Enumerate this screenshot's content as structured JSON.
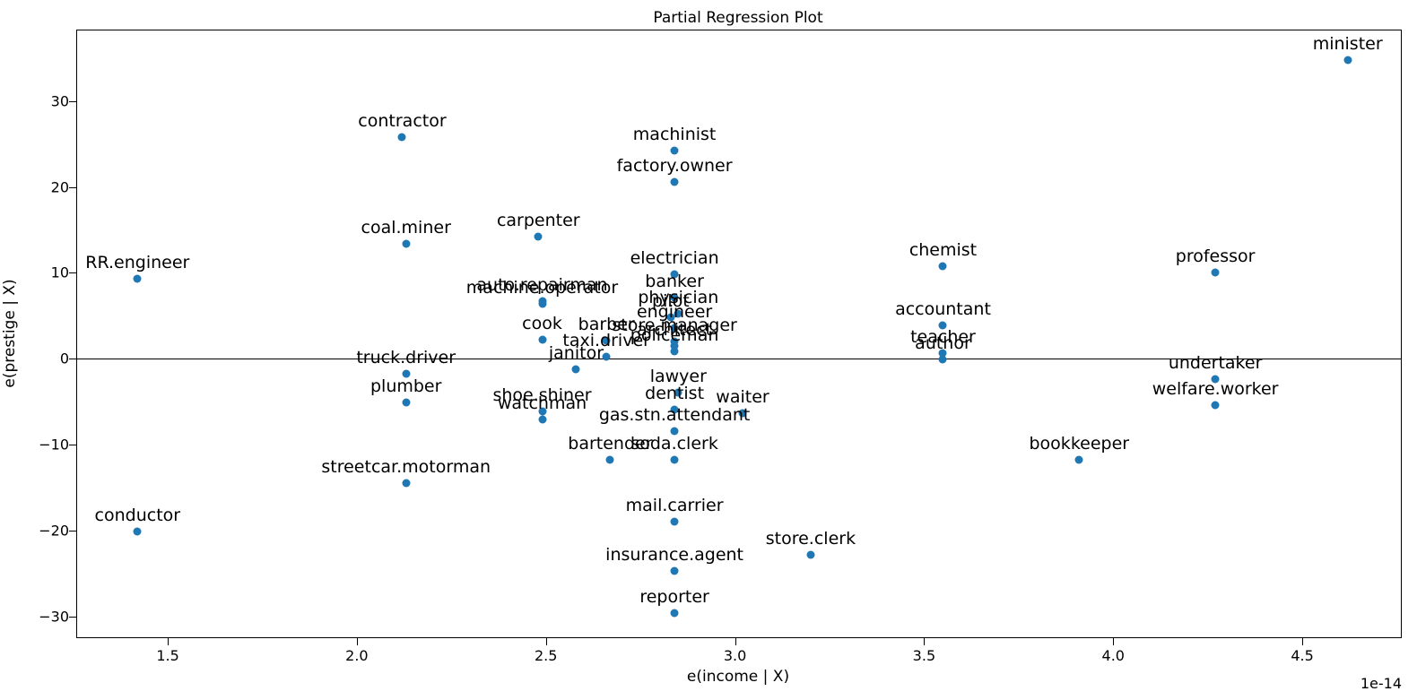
{
  "chart_data": {
    "type": "scatter",
    "title": "Partial Regression Plot",
    "xlabel": "e(income | X)",
    "ylabel": "e(prestige | X)",
    "x_offset_text": "1e-14",
    "xlim": [
      1.258,
      4.763
    ],
    "ylim": [
      -32.5,
      38.3
    ],
    "xticks": [
      1.5,
      2.0,
      2.5,
      3.0,
      3.5,
      4.0,
      4.5
    ],
    "xtick_labels": [
      "1.5",
      "2.0",
      "2.5",
      "3.0",
      "3.5",
      "4.0",
      "4.5"
    ],
    "yticks": [
      30,
      20,
      10,
      0,
      -10,
      -20,
      -30
    ],
    "ytick_labels": [
      "30",
      "20",
      "10",
      "0",
      "−10",
      "−20",
      "−30"
    ],
    "grid": false,
    "legend": false,
    "zero_line_y": 0,
    "point_color": "#1f77b4",
    "points": [
      {
        "label": "minister",
        "x": 4.62,
        "y": 34.8
      },
      {
        "label": "contractor",
        "x": 2.12,
        "y": 25.8
      },
      {
        "label": "machinist",
        "x": 2.84,
        "y": 24.2
      },
      {
        "label": "factory.owner",
        "x": 2.84,
        "y": 20.6
      },
      {
        "label": "carpenter",
        "x": 2.48,
        "y": 14.2
      },
      {
        "label": "coal.miner",
        "x": 2.13,
        "y": 13.4
      },
      {
        "label": "chemist",
        "x": 3.55,
        "y": 10.8
      },
      {
        "label": "professor",
        "x": 4.27,
        "y": 10.0
      },
      {
        "label": "electrician",
        "x": 2.84,
        "y": 9.8
      },
      {
        "label": "RR.engineer",
        "x": 1.42,
        "y": 9.3
      },
      {
        "label": "banker",
        "x": 2.84,
        "y": 7.1
      },
      {
        "label": "auto.repairman",
        "x": 2.49,
        "y": 6.7
      },
      {
        "label": "machine.operator",
        "x": 2.49,
        "y": 6.4
      },
      {
        "label": "physician",
        "x": 2.85,
        "y": 5.2
      },
      {
        "label": "pilot",
        "x": 2.83,
        "y": 4.8
      },
      {
        "label": "accountant",
        "x": 3.55,
        "y": 3.9
      },
      {
        "label": "engineer",
        "x": 2.84,
        "y": 3.6
      },
      {
        "label": "cook",
        "x": 2.49,
        "y": 2.2
      },
      {
        "label": "barber",
        "x": 2.66,
        "y": 2.1
      },
      {
        "label": "store.manager",
        "x": 2.84,
        "y": 2.0
      },
      {
        "label": "architect",
        "x": 2.84,
        "y": 1.5
      },
      {
        "label": "policeman",
        "x": 2.84,
        "y": 0.9
      },
      {
        "label": "teacher",
        "x": 3.55,
        "y": 0.7
      },
      {
        "label": "taxi.driver",
        "x": 2.66,
        "y": 0.2
      },
      {
        "label": "author",
        "x": 3.55,
        "y": -0.1
      },
      {
        "label": "janitor",
        "x": 2.58,
        "y": -1.2
      },
      {
        "label": "truck.driver",
        "x": 2.13,
        "y": -1.7
      },
      {
        "label": "undertaker",
        "x": 4.27,
        "y": -2.4
      },
      {
        "label": "lawyer",
        "x": 2.85,
        "y": -3.9
      },
      {
        "label": "plumber",
        "x": 2.13,
        "y": -5.1
      },
      {
        "label": "welfare.worker",
        "x": 4.27,
        "y": -5.4
      },
      {
        "label": "dentist",
        "x": 2.84,
        "y": -5.9
      },
      {
        "label": "shoe.shiner",
        "x": 2.49,
        "y": -6.1
      },
      {
        "label": "waiter",
        "x": 3.02,
        "y": -6.3
      },
      {
        "label": "watchman",
        "x": 2.49,
        "y": -7.1
      },
      {
        "label": "gas.stn.attendant",
        "x": 2.84,
        "y": -8.4
      },
      {
        "label": "bartender",
        "x": 2.67,
        "y": -11.8
      },
      {
        "label": "soda.clerk",
        "x": 2.84,
        "y": -11.7
      },
      {
        "label": "bookkeeper",
        "x": 3.91,
        "y": -11.7
      },
      {
        "label": "streetcar.motorman",
        "x": 2.13,
        "y": -14.5
      },
      {
        "label": "mail.carrier",
        "x": 2.84,
        "y": -18.9
      },
      {
        "label": "conductor",
        "x": 1.42,
        "y": -20.1
      },
      {
        "label": "store.clerk",
        "x": 3.2,
        "y": -22.8
      },
      {
        "label": "insurance.agent",
        "x": 2.84,
        "y": -24.7
      },
      {
        "label": "reporter",
        "x": 2.84,
        "y": -29.6
      }
    ]
  }
}
